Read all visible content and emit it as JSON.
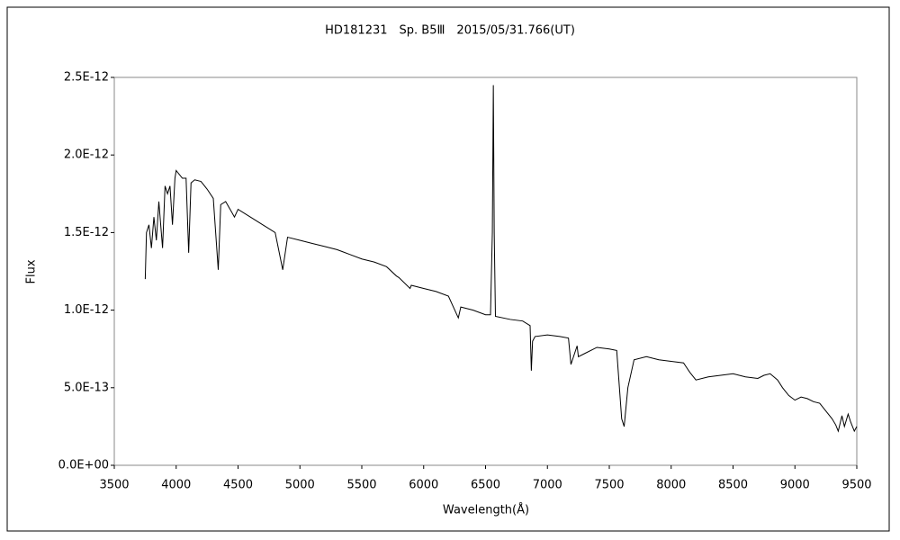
{
  "chart_data": {
    "type": "line",
    "title": "HD181231　Sp. B5Ⅲ　2015/05/31.766(UT)",
    "x_label": "Wavelength(Å)",
    "y_label": "Flux",
    "color": "#000000",
    "xlim": [
      3500,
      9500
    ],
    "xticks": [
      3500,
      4000,
      4500,
      5000,
      5500,
      6000,
      6500,
      7000,
      7500,
      8000,
      8500,
      9000,
      9500
    ],
    "ylim": [
      0,
      2.5e-12
    ],
    "yticks": [
      {
        "value": 0,
        "label": "0.0E+00"
      },
      {
        "value": 5e-13,
        "label": "5.0E-13"
      },
      {
        "value": 1e-12,
        "label": "1.0E-12"
      },
      {
        "value": 1.5e-12,
        "label": "1.5E-12"
      },
      {
        "value": 2e-12,
        "label": "2.0E-12"
      },
      {
        "value": 2.5e-12,
        "label": "2.5E-12"
      }
    ],
    "grid": false,
    "x": [
      3750,
      3760,
      3780,
      3800,
      3820,
      3840,
      3860,
      3890,
      3910,
      3930,
      3950,
      3970,
      3990,
      4000,
      4020,
      4050,
      4080,
      4101,
      4120,
      4150,
      4200,
      4250,
      4300,
      4340,
      4360,
      4400,
      4471,
      4500,
      4600,
      4700,
      4800,
      4861,
      4900,
      5000,
      5100,
      5200,
      5300,
      5400,
      5500,
      5600,
      5700,
      5780,
      5800,
      5890,
      5900,
      6000,
      6100,
      6200,
      6280,
      6300,
      6400,
      6500,
      6540,
      6555,
      6563,
      6570,
      6580,
      6700,
      6800,
      6860,
      6870,
      6880,
      6900,
      7000,
      7100,
      7170,
      7190,
      7240,
      7250,
      7300,
      7400,
      7500,
      7560,
      7600,
      7620,
      7650,
      7700,
      7800,
      7900,
      8000,
      8100,
      8150,
      8200,
      8300,
      8400,
      8500,
      8600,
      8700,
      8750,
      8800,
      8860,
      8900,
      8950,
      9000,
      9050,
      9100,
      9150,
      9200,
      9250,
      9300,
      9330,
      9350,
      9380,
      9400,
      9430,
      9450,
      9480,
      9500
    ],
    "values": [
      1.2e-12,
      1.5e-12,
      1.55e-12,
      1.4e-12,
      1.6e-12,
      1.45e-12,
      1.7e-12,
      1.4e-12,
      1.8e-12,
      1.75e-12,
      1.8e-12,
      1.55e-12,
      1.85e-12,
      1.9e-12,
      1.88e-12,
      1.85e-12,
      1.85e-12,
      1.37e-12,
      1.82e-12,
      1.84e-12,
      1.83e-12,
      1.78e-12,
      1.72e-12,
      1.26e-12,
      1.68e-12,
      1.7e-12,
      1.6e-12,
      1.65e-12,
      1.6e-12,
      1.55e-12,
      1.5e-12,
      1.26e-12,
      1.47e-12,
      1.45e-12,
      1.43e-12,
      1.41e-12,
      1.39e-12,
      1.36e-12,
      1.33e-12,
      1.31e-12,
      1.28e-12,
      1.22e-12,
      1.21e-12,
      1.14e-12,
      1.16e-12,
      1.14e-12,
      1.12e-12,
      1.09e-12,
      9.5e-13,
      1.02e-12,
      1e-12,
      9.7e-13,
      9.7e-13,
      1.5e-12,
      2.45e-12,
      1.5e-12,
      9.6e-13,
      9.4e-13,
      9.3e-13,
      9e-13,
      6.1e-13,
      8e-13,
      8.3e-13,
      8.4e-13,
      8.3e-13,
      8.2e-13,
      6.5e-13,
      7.7e-13,
      7e-13,
      7.2e-13,
      7.6e-13,
      7.5e-13,
      7.4e-13,
      3e-13,
      2.5e-13,
      5e-13,
      6.8e-13,
      7e-13,
      6.8e-13,
      6.7e-13,
      6.6e-13,
      6e-13,
      5.5e-13,
      5.7e-13,
      5.8e-13,
      5.9e-13,
      5.7e-13,
      5.6e-13,
      5.8e-13,
      5.9e-13,
      5.5e-13,
      5e-13,
      4.5e-13,
      4.2e-13,
      4.4e-13,
      4.3e-13,
      4.1e-13,
      4e-13,
      3.5e-13,
      3e-13,
      2.6e-13,
      2.2e-13,
      3.2e-13,
      2.5e-13,
      3.3e-13,
      2.8e-13,
      2.2e-13,
      2.5e-13
    ]
  }
}
